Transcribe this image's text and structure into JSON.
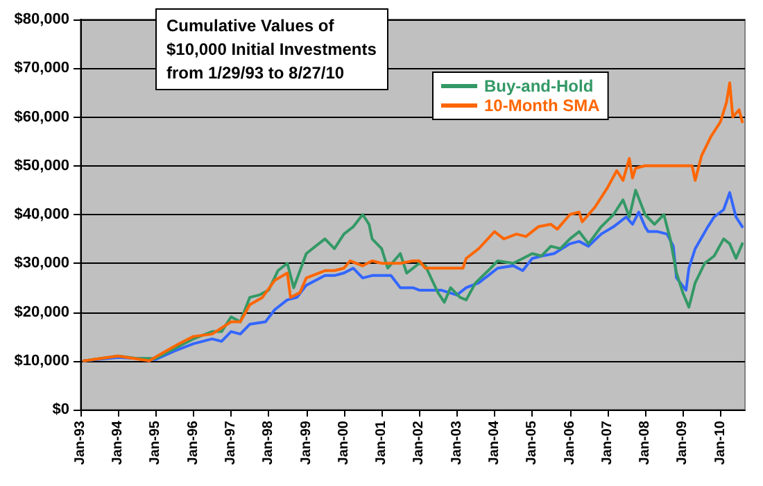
{
  "chart_data": {
    "type": "line",
    "title": "Cumulative Values of\n$10,000 Initial Investments\nfrom 1/29/93 to 8/27/10",
    "xlim": [
      "1993-01-01",
      "2010-08-27"
    ],
    "xticks": [
      {
        "value": "1993-01-01",
        "label": "Jan-93"
      },
      {
        "value": "1994-01-01",
        "label": "Jan-94"
      },
      {
        "value": "1995-01-01",
        "label": "Jan-95"
      },
      {
        "value": "1996-01-01",
        "label": "Jan-96"
      },
      {
        "value": "1997-01-01",
        "label": "Jan-97"
      },
      {
        "value": "1998-01-01",
        "label": "Jan-98"
      },
      {
        "value": "1999-01-01",
        "label": "Jan-99"
      },
      {
        "value": "2000-01-01",
        "label": "Jan-00"
      },
      {
        "value": "2001-01-01",
        "label": "Jan-01"
      },
      {
        "value": "2002-01-01",
        "label": "Jan-02"
      },
      {
        "value": "2003-01-01",
        "label": "Jan-03"
      },
      {
        "value": "2004-01-01",
        "label": "Jan-04"
      },
      {
        "value": "2005-01-01",
        "label": "Jan-05"
      },
      {
        "value": "2006-01-01",
        "label": "Jan-06"
      },
      {
        "value": "2007-01-01",
        "label": "Jan-07"
      },
      {
        "value": "2008-01-01",
        "label": "Jan-08"
      },
      {
        "value": "2009-01-01",
        "label": "Jan-09"
      },
      {
        "value": "2010-01-01",
        "label": "Jan-10"
      }
    ],
    "ylim": [
      0,
      80000
    ],
    "yticks": [
      {
        "value": 0,
        "label": "$0"
      },
      {
        "value": 10000,
        "label": "$10,000"
      },
      {
        "value": 20000,
        "label": "$20,000"
      },
      {
        "value": 30000,
        "label": "$30,000"
      },
      {
        "value": 40000,
        "label": "$40,000"
      },
      {
        "value": 50000,
        "label": "$50,000"
      },
      {
        "value": 60000,
        "label": "$60,000"
      },
      {
        "value": 70000,
        "label": "$70,000"
      },
      {
        "value": 80000,
        "label": "$80,000"
      }
    ],
    "grid": "y",
    "legend": "top",
    "marker": "none",
    "line_style": "solid",
    "series": [
      {
        "color": "#3366ff",
        "x": [
          "1993-02",
          "1994-01",
          "1995-01",
          "1995-07",
          "1996-01",
          "1996-07",
          "1996-10",
          "1997-01",
          "1997-04",
          "1997-07",
          "1997-12",
          "1998-03",
          "1998-07",
          "1998-10",
          "1999-01",
          "1999-07",
          "1999-10",
          "2000-01",
          "2000-04",
          "2000-07",
          "2000-10",
          "2001-01",
          "2001-04",
          "2001-07",
          "2001-11",
          "2002-01",
          "2002-04",
          "2002-08",
          "2003-01",
          "2003-04",
          "2003-08",
          "2003-11",
          "2004-02",
          "2004-07",
          "2004-10",
          "2005-01",
          "2005-04",
          "2005-08",
          "2006-01",
          "2006-04",
          "2006-07",
          "2006-11",
          "2007-03",
          "2007-07",
          "2007-09",
          "2007-11",
          "2008-01",
          "2008-02",
          "2008-05",
          "2008-08",
          "2008-10",
          "2008-11",
          "2009-02",
          "2009-03",
          "2009-05",
          "2009-09",
          "2009-11",
          "2010-02",
          "2010-04",
          "2010-06",
          "2010-08"
        ],
        "values": [
          10000,
          10700,
          10300,
          12000,
          13500,
          14500,
          14000,
          16000,
          15500,
          17500,
          18000,
          20500,
          22500,
          23000,
          25500,
          27500,
          27500,
          28000,
          29000,
          27000,
          27500,
          27500,
          27500,
          25000,
          25000,
          24500,
          24500,
          24500,
          23500,
          25000,
          26000,
          27500,
          29000,
          29500,
          28500,
          31000,
          31500,
          32000,
          34000,
          34500,
          33500,
          36000,
          37500,
          39500,
          38000,
          40500,
          37500,
          36500,
          36500,
          36000,
          33500,
          27000,
          24500,
          29000,
          33000,
          37500,
          39500,
          41000,
          44500,
          39500,
          37500
        ]
      },
      {
        "name": "Buy-and-Hold",
        "color": "#339966",
        "x": [
          "1993-02",
          "1994-01",
          "1994-07",
          "1995-01",
          "1995-07",
          "1996-01",
          "1996-07",
          "1996-10",
          "1997-01",
          "1997-04",
          "1997-07",
          "1997-10",
          "1998-01",
          "1998-04",
          "1998-07",
          "1998-09",
          "1998-11",
          "1999-01",
          "1999-04",
          "1999-07",
          "1999-10",
          "2000-01",
          "2000-04",
          "2000-07",
          "2000-09",
          "2000-10",
          "2001-01",
          "2001-03",
          "2001-07",
          "2001-09",
          "2002-01",
          "2002-03",
          "2002-07",
          "2002-09",
          "2002-11",
          "2003-02",
          "2003-04",
          "2003-07",
          "2003-11",
          "2004-02",
          "2004-07",
          "2004-10",
          "2005-01",
          "2005-04",
          "2005-07",
          "2005-10",
          "2006-01",
          "2006-04",
          "2006-07",
          "2006-11",
          "2007-03",
          "2007-06",
          "2007-08",
          "2007-10",
          "2008-01",
          "2008-04",
          "2008-07",
          "2008-09",
          "2008-11",
          "2009-01",
          "2009-03",
          "2009-05",
          "2009-08",
          "2009-11",
          "2010-02",
          "2010-04",
          "2010-06",
          "2010-08"
        ],
        "values": [
          10000,
          11000,
          10500,
          10500,
          12500,
          14500,
          16000,
          16000,
          19000,
          18000,
          23000,
          23500,
          24500,
          28500,
          30000,
          25000,
          28500,
          32000,
          33500,
          35000,
          33000,
          36000,
          37500,
          40000,
          38000,
          35000,
          33000,
          29000,
          32000,
          28000,
          30000,
          29500,
          24000,
          22000,
          25000,
          23000,
          22500,
          26000,
          28500,
          30500,
          30000,
          31000,
          32000,
          31500,
          33500,
          33000,
          35000,
          36500,
          34000,
          37500,
          40000,
          43000,
          39500,
          45000,
          40000,
          38000,
          40000,
          35000,
          28000,
          24000,
          21000,
          26000,
          30000,
          31500,
          35000,
          34000,
          31000,
          34000
        ]
      },
      {
        "name": "10-Month SMA",
        "color": "#ff6600",
        "x": [
          "1993-02",
          "1994-01",
          "1994-11",
          "1995-01",
          "1995-07",
          "1996-01",
          "1996-07",
          "1997-01",
          "1997-04",
          "1997-07",
          "1997-11",
          "1998-03",
          "1998-07",
          "1998-08",
          "1998-11",
          "1999-01",
          "1999-07",
          "1999-10",
          "2000-01",
          "2000-03",
          "2000-07",
          "2000-10",
          "2001-01",
          "2001-07",
          "2001-11",
          "2002-01",
          "2002-03",
          "2002-07",
          "2003-03",
          "2003-04",
          "2003-08",
          "2004-01",
          "2004-04",
          "2004-08",
          "2004-11",
          "2005-03",
          "2005-07",
          "2005-09",
          "2006-01",
          "2006-04",
          "2006-05",
          "2006-09",
          "2007-01",
          "2007-04",
          "2007-06",
          "2007-08",
          "2007-09",
          "2007-10",
          "2008-01",
          "2008-07",
          "2009-01",
          "2009-04",
          "2009-05",
          "2009-07",
          "2009-10",
          "2010-01",
          "2010-03",
          "2010-04",
          "2010-05",
          "2010-07",
          "2010-08"
        ],
        "values": [
          10000,
          11000,
          10000,
          10800,
          13000,
          15000,
          15500,
          18000,
          18000,
          21500,
          23000,
          26500,
          28000,
          23000,
          24000,
          27000,
          28500,
          28500,
          29000,
          30500,
          29500,
          30500,
          30000,
          30000,
          30500,
          30500,
          29000,
          29000,
          29000,
          31000,
          33000,
          36500,
          35000,
          36000,
          35500,
          37500,
          38000,
          37000,
          40000,
          40500,
          38500,
          41500,
          45500,
          49000,
          47000,
          51500,
          47500,
          49500,
          50000,
          50000,
          50000,
          50000,
          47000,
          52000,
          56000,
          59000,
          63000,
          67000,
          60000,
          61500,
          59000
        ]
      }
    ]
  }
}
